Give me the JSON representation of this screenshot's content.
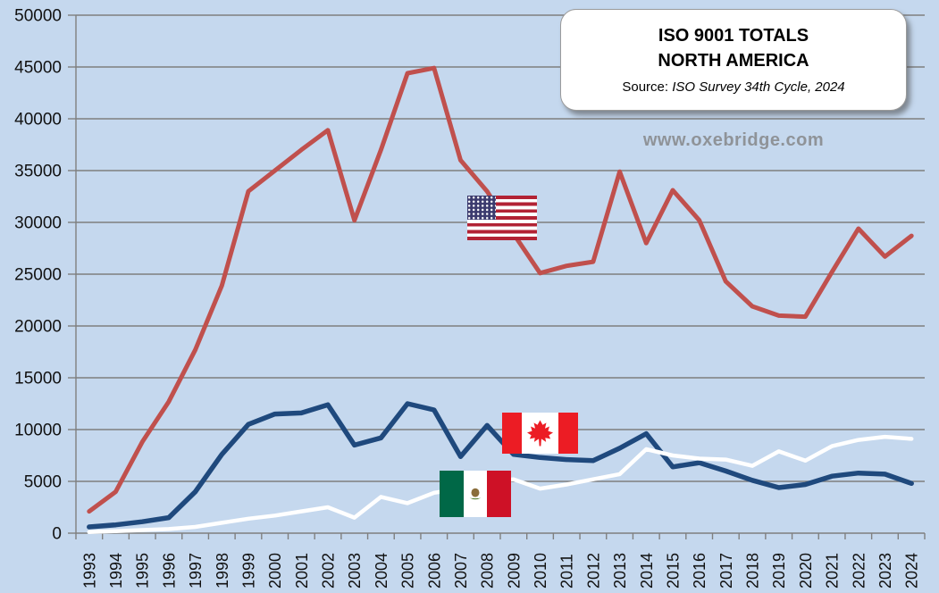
{
  "title_box": {
    "line1": "ISO 9001 TOTALS",
    "line2": "NORTH AMERICA",
    "source_prefix": "Source: ",
    "source_text": "ISO Survey 34th Cycle, 2024"
  },
  "watermark": "www.oxebridge.com",
  "colors": {
    "background": "#c5d8ee",
    "gridline": "#7f7f7f",
    "axis_text": "#111111",
    "usa_line": "#c0504d",
    "canada_line": "#1f497d",
    "mexico_line": "#ffffff",
    "watermark_text": "#8f9398"
  },
  "chart_data": {
    "type": "line",
    "title": "ISO 9001 TOTALS NORTH AMERICA",
    "xlabel": "",
    "ylabel": "",
    "ylim": [
      0,
      50000
    ],
    "ytick_step": 5000,
    "grid": true,
    "legend": "flag icons placed beside each line (USA, Canada, Mexico)",
    "x": [
      1993,
      1994,
      1995,
      1996,
      1997,
      1998,
      1999,
      2000,
      2001,
      2002,
      2003,
      2004,
      2005,
      2006,
      2007,
      2008,
      2009,
      2010,
      2011,
      2012,
      2013,
      2014,
      2015,
      2016,
      2017,
      2018,
      2019,
      2020,
      2021,
      2022,
      2023,
      2024
    ],
    "series": [
      {
        "name": "USA",
        "color": "#c0504d",
        "stroke_width": 5,
        "values": [
          2100,
          4000,
          8800,
          12700,
          17700,
          23900,
          33000,
          35000,
          37000,
          38900,
          30200,
          37000,
          44400,
          44900,
          36000,
          33000,
          28900,
          25100,
          25800,
          26200,
          34900,
          28000,
          33100,
          30200,
          24300,
          21900,
          21000,
          20900,
          25200,
          29400,
          26700,
          28700
        ]
      },
      {
        "name": "Canada",
        "color": "#1f497d",
        "stroke_width": 5.5,
        "values": [
          600,
          800,
          1100,
          1500,
          4000,
          7600,
          10500,
          11500,
          11600,
          12400,
          8500,
          9200,
          12500,
          11900,
          7400,
          10400,
          7600,
          7300,
          7100,
          7000,
          8200,
          9600,
          6400,
          6800,
          6000,
          5100,
          4400,
          4700,
          5500,
          5800,
          5700,
          4800
        ]
      },
      {
        "name": "Mexico",
        "color": "#ffffff",
        "stroke_width": 4.5,
        "values": [
          100,
          200,
          300,
          400,
          600,
          1000,
          1400,
          1700,
          2100,
          2500,
          1500,
          3500,
          2900,
          3900,
          4300,
          5000,
          5200,
          4300,
          4700,
          5200,
          5700,
          8100,
          7500,
          7200,
          7100,
          6500,
          7900,
          7000,
          8400,
          9000,
          9300,
          9100
        ]
      }
    ]
  }
}
